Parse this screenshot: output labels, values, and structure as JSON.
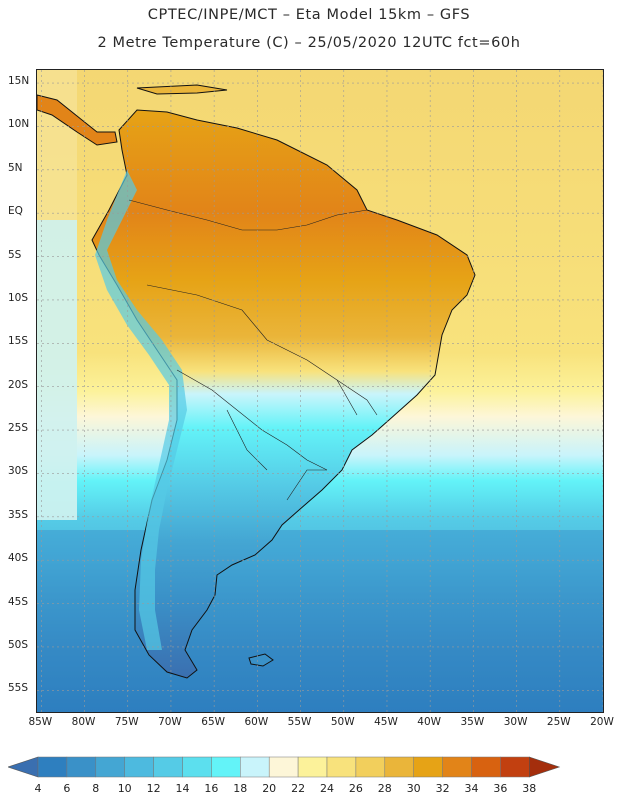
{
  "header": {
    "line1": "CPTEC/INPE/MCT –  Eta Model 15km – GFS",
    "line2": "2 Metre Temperature (C) – 25/05/2020 12UTC fct=60h"
  },
  "map": {
    "lat_labels": [
      "15N",
      "10N",
      "5N",
      "EQ",
      "5S",
      "10S",
      "15S",
      "20S",
      "25S",
      "30S",
      "35S",
      "40S",
      "45S",
      "50S",
      "55S"
    ],
    "lon_labels": [
      "85W",
      "80W",
      "75W",
      "70W",
      "65W",
      "60W",
      "55W",
      "50W",
      "45W",
      "40W",
      "35W",
      "30W",
      "25W",
      "20W"
    ],
    "lat_values": [
      15,
      10,
      5,
      0,
      -5,
      -10,
      -15,
      -20,
      -25,
      -30,
      -35,
      -40,
      -45,
      -50,
      -55
    ],
    "lon_values": [
      -85,
      -80,
      -75,
      -70,
      -65,
      -60,
      -55,
      -50,
      -45,
      -40,
      -35,
      -30,
      -25,
      -20
    ],
    "lat_range": [
      -57.5,
      16.5
    ],
    "lon_range": [
      -85.5,
      -20.0
    ]
  },
  "colorbar": {
    "ticks": [
      "4",
      "6",
      "8",
      "10",
      "12",
      "14",
      "16",
      "18",
      "20",
      "22",
      "24",
      "26",
      "28",
      "30",
      "32",
      "34",
      "36",
      "38"
    ],
    "colors": [
      "#3a6fb0",
      "#2e7fbf",
      "#3a91c8",
      "#44a6d3",
      "#4dbadf",
      "#55cbe6",
      "#5cdfee",
      "#63f3f8",
      "#c9f4fb",
      "#fdf6d8",
      "#fcf29a",
      "#f8e27c",
      "#f2cf5c",
      "#eab53a",
      "#e6a316",
      "#e28418",
      "#d86210",
      "#c24010",
      "#a42e0c"
    ]
  }
}
